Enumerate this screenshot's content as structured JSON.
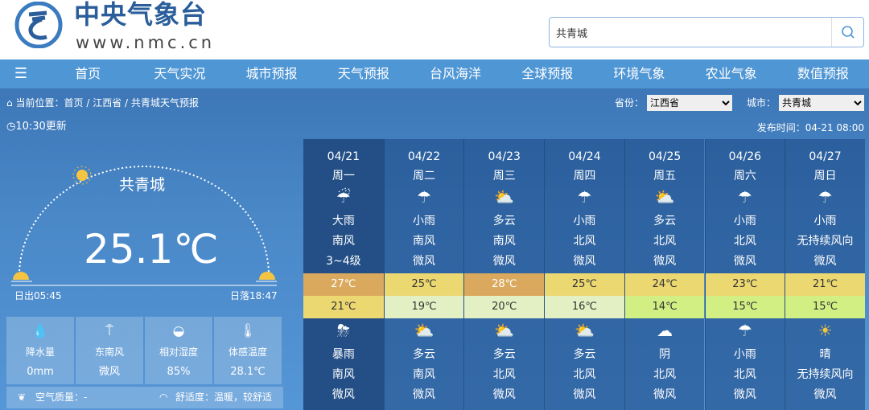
{
  "header": {
    "logo_title": "中央气象台",
    "logo_url": "www.nmc.cn",
    "search_value": "共青城"
  },
  "nav": {
    "items": [
      "首页",
      "天气实况",
      "城市预报",
      "天气预报",
      "台风海洋",
      "全球预报",
      "环境气象",
      "农业气象",
      "数值预报"
    ]
  },
  "breadcrumb": {
    "prefix": "当前位置：",
    "items": [
      "首页",
      "江西省",
      "共青城天气预报"
    ],
    "sep": "/"
  },
  "selectors": {
    "province_label": "省份：",
    "province": "江西省",
    "city_label": "城市：",
    "city": "共青城"
  },
  "updated": "10:30更新",
  "publish_time": "发布时间：04-21 08:00",
  "current": {
    "city": "共青城",
    "temperature": "25.1℃",
    "sunrise": "日出05:45",
    "sunset": "日落18:47",
    "stats": [
      {
        "icon": "raindrops-icon",
        "label": "降水量",
        "value": "0mm"
      },
      {
        "icon": "wind-vane-icon",
        "label": "东南风",
        "value": "微风"
      },
      {
        "icon": "humidity-drop-icon",
        "label": "相对湿度",
        "value": "85%"
      },
      {
        "icon": "thermometer-icon",
        "label": "体感温度",
        "value": "28.1℃"
      }
    ],
    "air_quality": "空气质量：-",
    "comfort": "舒适度：温暖，较舒适"
  },
  "forecast": [
    {
      "date": "04/21",
      "weekday": "周一",
      "day_icon": "heavy-rain",
      "day_weather": "大雨",
      "day_wind": "南风",
      "day_power": "3~4级",
      "high": "27℃",
      "low": "21℃",
      "high_color": "#dba95e",
      "low_color": "#ecd871",
      "night_icon": "rainstorm",
      "night_weather": "暴雨",
      "night_wind": "南风",
      "night_power": "微风"
    },
    {
      "date": "04/22",
      "weekday": "周二",
      "day_icon": "light-rain",
      "day_weather": "小雨",
      "day_wind": "南风",
      "day_power": "微风",
      "high": "25℃",
      "low": "19℃",
      "high_color": "#ecd871",
      "low_color": "#e2f0c3",
      "night_icon": "partly-cloudy",
      "night_weather": "多云",
      "night_wind": "南风",
      "night_power": "微风"
    },
    {
      "date": "04/23",
      "weekday": "周三",
      "day_icon": "partly-cloudy",
      "day_weather": "多云",
      "day_wind": "南风",
      "day_power": "微风",
      "high": "28℃",
      "low": "20℃",
      "high_color": "#dba95e",
      "low_color": "#e2f0c3",
      "night_icon": "partly-cloudy",
      "night_weather": "多云",
      "night_wind": "北风",
      "night_power": "微风"
    },
    {
      "date": "04/24",
      "weekday": "周四",
      "day_icon": "light-rain",
      "day_weather": "小雨",
      "day_wind": "北风",
      "day_power": "微风",
      "high": "25℃",
      "low": "16℃",
      "high_color": "#ecd871",
      "low_color": "#e2f0c3",
      "night_icon": "partly-cloudy",
      "night_weather": "多云",
      "night_wind": "北风",
      "night_power": "微风"
    },
    {
      "date": "04/25",
      "weekday": "周五",
      "day_icon": "partly-cloudy",
      "day_weather": "多云",
      "day_wind": "北风",
      "day_power": "微风",
      "high": "24℃",
      "low": "14℃",
      "high_color": "#ecd871",
      "low_color": "#d2ef83",
      "night_icon": "overcast",
      "night_weather": "阴",
      "night_wind": "北风",
      "night_power": "微风"
    },
    {
      "date": "04/26",
      "weekday": "周六",
      "day_icon": "light-rain",
      "day_weather": "小雨",
      "day_wind": "北风",
      "day_power": "微风",
      "high": "23℃",
      "low": "15℃",
      "high_color": "#ecd871",
      "low_color": "#d2ef83",
      "night_icon": "light-rain",
      "night_weather": "小雨",
      "night_wind": "北风",
      "night_power": "微风"
    },
    {
      "date": "04/27",
      "weekday": "周日",
      "day_icon": "light-rain",
      "day_weather": "小雨",
      "day_wind": "无持续风向",
      "day_power": "微风",
      "high": "21℃",
      "low": "15℃",
      "high_color": "#ecd871",
      "low_color": "#d2ef83",
      "night_icon": "sunny",
      "night_weather": "晴",
      "night_wind": "无持续风向",
      "night_power": "微风"
    }
  ]
}
